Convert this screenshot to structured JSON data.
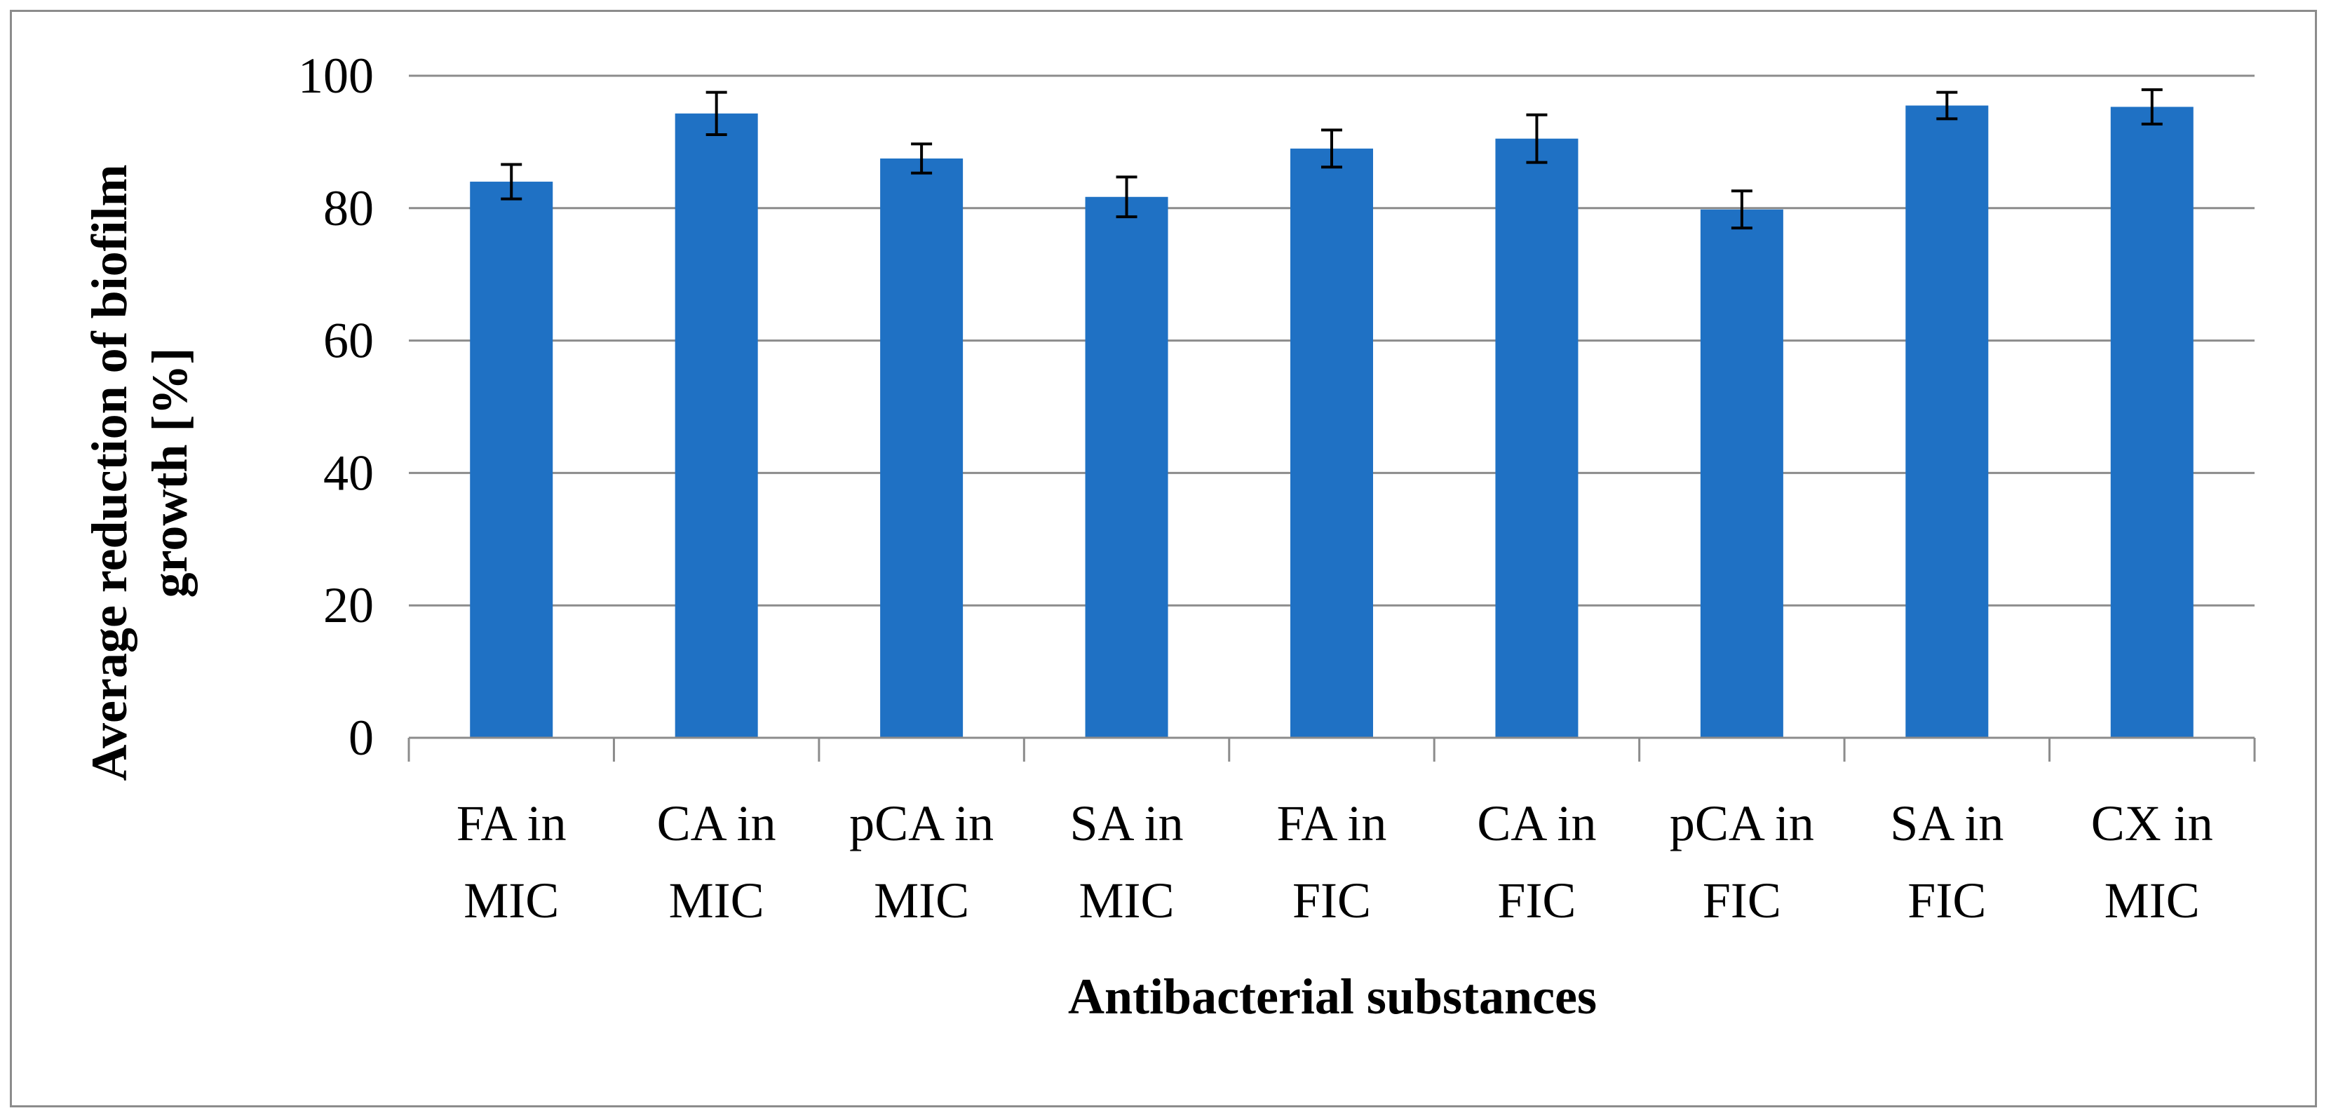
{
  "chart_data": {
    "type": "bar",
    "title": "",
    "xlabel": "Antibacterial substances",
    "ylabel_lines": [
      "Average reduction of biofilm",
      "growth [%]"
    ],
    "ylim": [
      0,
      100
    ],
    "yticks": [
      0,
      20,
      40,
      60,
      80,
      100
    ],
    "grid": true,
    "categories": [
      [
        "FA in",
        "MIC"
      ],
      [
        "CA in",
        "MIC"
      ],
      [
        "pCA in",
        "MIC"
      ],
      [
        "SA in",
        "MIC"
      ],
      [
        "FA in",
        "FIC"
      ],
      [
        "CA in",
        "FIC"
      ],
      [
        "pCA in",
        "FIC"
      ],
      [
        "SA in",
        "FIC"
      ],
      [
        "CX in",
        "MIC"
      ]
    ],
    "values": [
      84.0,
      94.3,
      87.5,
      81.7,
      89.0,
      90.5,
      79.8,
      95.5,
      95.3
    ],
    "errors": [
      2.6,
      3.2,
      2.2,
      3.0,
      2.8,
      3.6,
      2.8,
      2.0,
      2.6
    ],
    "colors": {
      "bar": "#1f71c4",
      "grid": "#8c8c8c",
      "axis": "#8c8c8c",
      "error": "#000000"
    }
  }
}
